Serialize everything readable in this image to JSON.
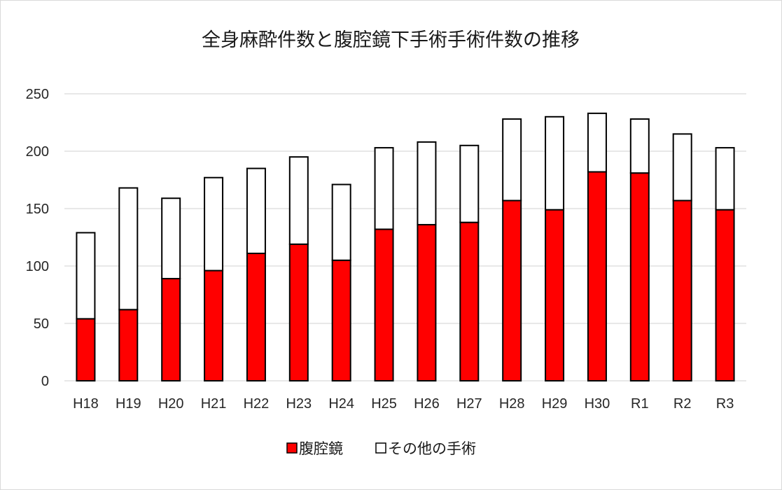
{
  "chart_data": {
    "type": "bar",
    "stacked": true,
    "title": "全身麻酔件数と腹腔鏡下手術手術件数の推移",
    "categories": [
      "H18",
      "H19",
      "H20",
      "H21",
      "H22",
      "H23",
      "H24",
      "H25",
      "H26",
      "H27",
      "H28",
      "H29",
      "H30",
      "R1",
      "R2",
      "R3"
    ],
    "series": [
      {
        "name": "腹腔鏡",
        "color": "#ff0000",
        "values": [
          54,
          62,
          89,
          96,
          111,
          119,
          105,
          132,
          136,
          138,
          157,
          149,
          182,
          181,
          157,
          149
        ]
      },
      {
        "name": "その他の手術",
        "color": "#ffffff",
        "values": [
          75,
          106,
          70,
          81,
          74,
          76,
          66,
          71,
          72,
          67,
          71,
          81,
          51,
          47,
          58,
          54
        ]
      }
    ],
    "ylim": [
      0,
      250
    ],
    "yticks": [
      0,
      50,
      100,
      150,
      200,
      250
    ],
    "grid": true,
    "legend_position": "bottom"
  }
}
